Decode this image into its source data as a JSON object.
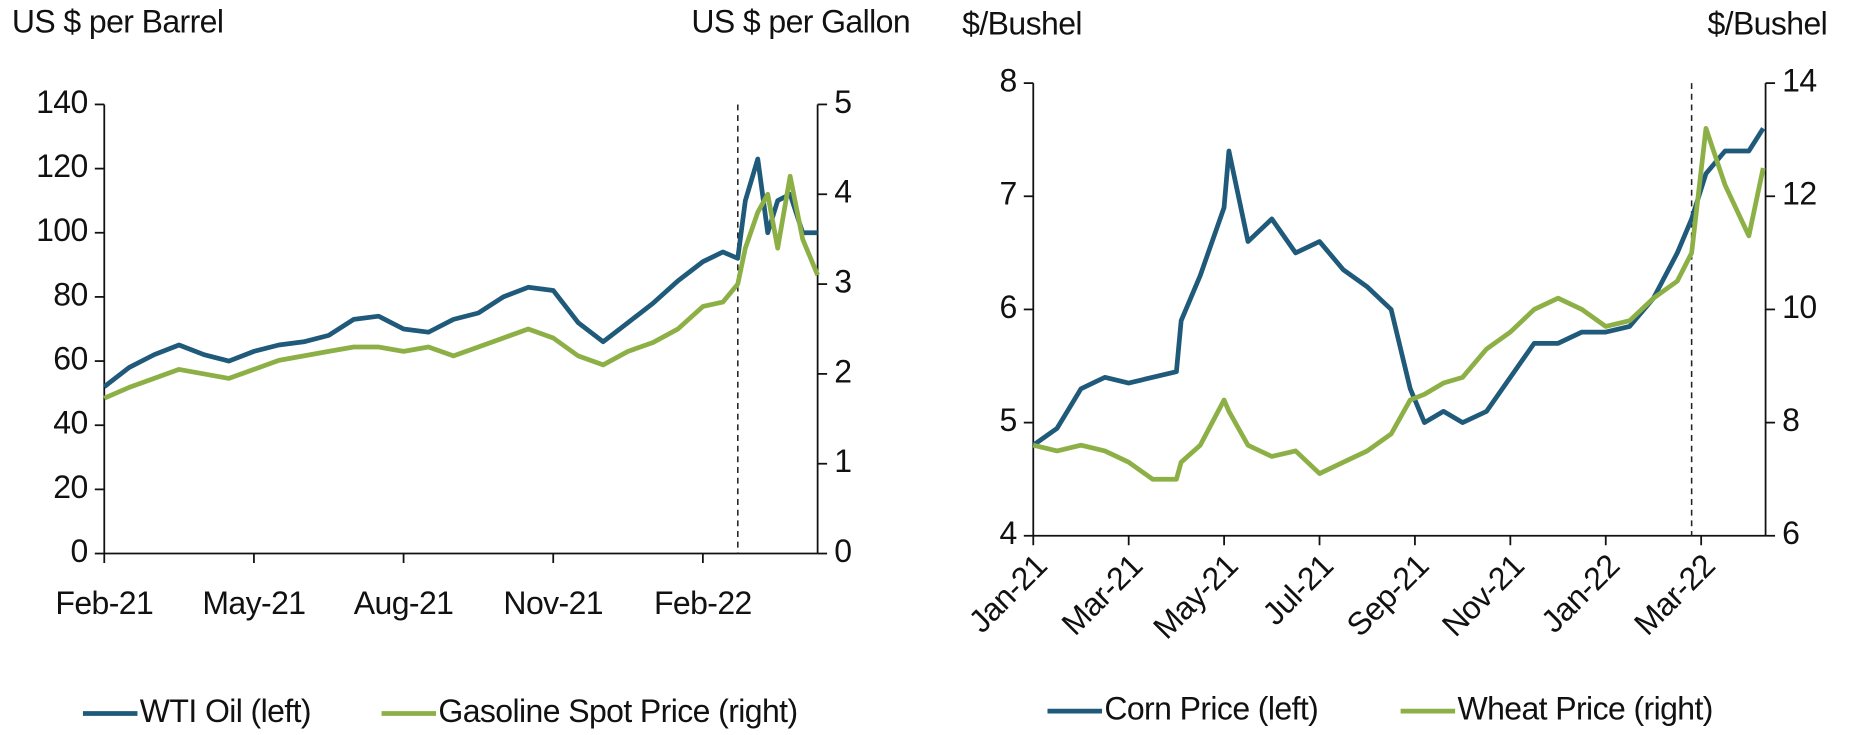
{
  "chart_data": [
    {
      "type": "line",
      "ylabel": "US $ per Barrel",
      "y2label": "US $ per Gallon",
      "x": [
        0,
        0.5,
        1,
        1.5,
        2,
        2.5,
        3,
        3.5,
        4,
        4.5,
        5,
        5.5,
        6,
        6.5,
        7,
        7.5,
        8,
        8.5,
        9,
        9.5,
        10,
        10.5,
        11,
        11.5,
        12,
        12.4,
        12.7,
        12.85,
        13.1,
        13.3,
        13.5,
        13.75,
        14,
        14.3
      ],
      "xlim": [
        0,
        14.3
      ],
      "xticks": [
        {
          "value": 0,
          "label": "Feb-21"
        },
        {
          "value": 3,
          "label": "May-21"
        },
        {
          "value": 6,
          "label": "Aug-21"
        },
        {
          "value": 9,
          "label": "Nov-21"
        },
        {
          "value": 12,
          "label": "Feb-22"
        }
      ],
      "ylim": [
        0,
        140
      ],
      "yticks": [
        0,
        20,
        40,
        60,
        80,
        100,
        120,
        140
      ],
      "y2lim": [
        0,
        5
      ],
      "y2ticks": [
        0,
        1,
        2,
        3,
        4,
        5
      ],
      "vline": 12.7,
      "series": [
        {
          "name": "WTI Oil (left)",
          "color": "#1f5a7a",
          "values": [
            52,
            58,
            62,
            65,
            62,
            60,
            63,
            65,
            66,
            68,
            73,
            74,
            70,
            69,
            73,
            75,
            80,
            83,
            82,
            72,
            66,
            72,
            78,
            85,
            91,
            94,
            92,
            110,
            123,
            100,
            110,
            112,
            100,
            100
          ]
        },
        {
          "name": "Gasoline Spot Price (right)",
          "color": "#8db046",
          "axis": "y2",
          "values": [
            1.73,
            1.85,
            1.95,
            2.05,
            2.0,
            1.95,
            2.05,
            2.15,
            2.2,
            2.25,
            2.3,
            2.3,
            2.25,
            2.3,
            2.2,
            2.3,
            2.4,
            2.5,
            2.4,
            2.2,
            2.1,
            2.25,
            2.35,
            2.5,
            2.75,
            2.8,
            3.0,
            3.4,
            3.8,
            4.0,
            3.4,
            4.2,
            3.5,
            3.1
          ]
        }
      ]
    },
    {
      "type": "line",
      "ylabel": "$/Bushel",
      "y2label": "$/Bushel",
      "x": [
        0,
        0.5,
        1,
        1.5,
        2,
        2.5,
        3,
        3.1,
        3.5,
        4,
        4.1,
        4.5,
        5,
        5.5,
        6,
        6.5,
        7,
        7.5,
        7.9,
        8.2,
        8.6,
        9,
        9.5,
        10,
        10.5,
        11,
        11.5,
        12,
        12.5,
        13,
        13.5,
        13.8,
        14.1,
        14.5,
        15,
        15.3
      ],
      "xlim": [
        0,
        15.35
      ],
      "xticks": [
        {
          "value": 0,
          "label": "Jan-21"
        },
        {
          "value": 2,
          "label": "Mar-21"
        },
        {
          "value": 4,
          "label": "May-21"
        },
        {
          "value": 6,
          "label": "Jul-21"
        },
        {
          "value": 8,
          "label": "Sep-21"
        },
        {
          "value": 10,
          "label": "Nov-21"
        },
        {
          "value": 12,
          "label": "Jan-22"
        },
        {
          "value": 14,
          "label": "Mar-22"
        }
      ],
      "ylim": [
        4,
        8
      ],
      "yticks": [
        4,
        5,
        6,
        7,
        8
      ],
      "y2lim": [
        6,
        14
      ],
      "y2ticks": [
        6,
        8,
        10,
        12,
        14
      ],
      "vline": 13.8,
      "series": [
        {
          "name": "Corn Price (left)",
          "color": "#1f5a7a",
          "values": [
            4.8,
            4.95,
            5.3,
            5.4,
            5.35,
            5.4,
            5.45,
            5.9,
            6.3,
            6.9,
            7.4,
            6.6,
            6.8,
            6.5,
            6.6,
            6.35,
            6.2,
            6.0,
            5.3,
            5.0,
            5.1,
            5.0,
            5.1,
            5.4,
            5.7,
            5.7,
            5.8,
            5.8,
            5.85,
            6.1,
            6.5,
            6.8,
            7.2,
            7.4,
            7.4,
            7.6
          ]
        },
        {
          "name": "Wheat Price (right)",
          "color": "#8db046",
          "axis": "y2",
          "values": [
            7.6,
            7.5,
            7.6,
            7.5,
            7.3,
            7.0,
            7.0,
            7.3,
            7.6,
            8.4,
            8.2,
            7.6,
            7.4,
            7.5,
            7.1,
            7.3,
            7.5,
            7.8,
            8.4,
            8.5,
            8.7,
            8.8,
            9.3,
            9.6,
            10.0,
            10.2,
            10.0,
            9.7,
            9.8,
            10.2,
            10.5,
            11.0,
            13.2,
            12.2,
            11.3,
            12.5
          ]
        }
      ]
    }
  ]
}
